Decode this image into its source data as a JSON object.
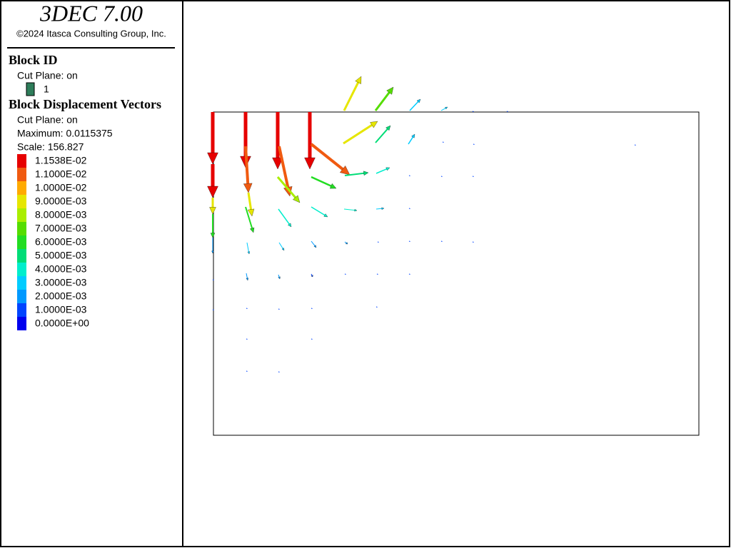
{
  "header": {
    "title": "3DEC 7.00",
    "copyright": "©2024 Itasca Consulting Group, Inc."
  },
  "block_id": {
    "title": "Block  ID",
    "cut_plane": "Cut Plane: on",
    "items": [
      {
        "label": "1",
        "color": "#2e7d5a"
      }
    ]
  },
  "vectors": {
    "title": "Block Displacement Vectors",
    "cut_plane": "Cut Plane: on",
    "maximum": "Maximum: 0.0115375",
    "scale": "Scale: 156.827",
    "legend": [
      {
        "label": "1.1538E-02",
        "color": "#e60000"
      },
      {
        "label": "1.1000E-02",
        "color": "#f05a10"
      },
      {
        "label": "1.0000E-02",
        "color": "#ffaa00"
      },
      {
        "label": "9.0000E-03",
        "color": "#e6e600"
      },
      {
        "label": "8.0000E-03",
        "color": "#aaee00"
      },
      {
        "label": "7.0000E-03",
        "color": "#55dd00"
      },
      {
        "label": "6.0000E-03",
        "color": "#22dd22"
      },
      {
        "label": "5.0000E-03",
        "color": "#00dd77"
      },
      {
        "label": "4.0000E-03",
        "color": "#00eecc"
      },
      {
        "label": "3.0000E-03",
        "color": "#00ccff"
      },
      {
        "label": "2.0000E-03",
        "color": "#0099ff"
      },
      {
        "label": "1.0000E-03",
        "color": "#0044ff"
      },
      {
        "label": "0.0000E+00",
        "color": "#0000ee"
      }
    ]
  }
}
